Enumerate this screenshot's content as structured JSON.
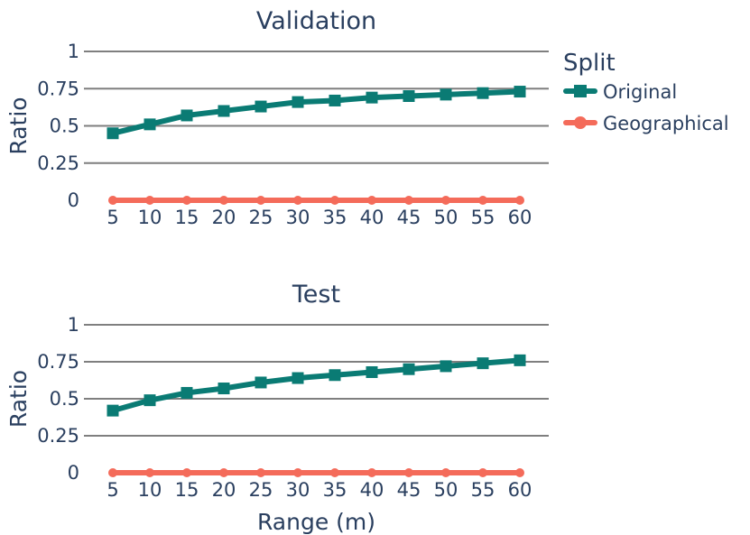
{
  "chart_data": [
    {
      "type": "line",
      "title": "Validation",
      "xlabel": "",
      "ylabel": "Ratio",
      "x": [
        5,
        10,
        15,
        20,
        25,
        30,
        35,
        40,
        45,
        50,
        55,
        60
      ],
      "ylim": [
        0,
        1
      ],
      "yticks": [
        "0",
        "0.25",
        "0.5",
        "0.75",
        "1"
      ],
      "grid": true,
      "series": [
        {
          "name": "Original",
          "color": "#0a7b74",
          "marker": "square",
          "values": [
            0.45,
            0.51,
            0.57,
            0.6,
            0.63,
            0.66,
            0.67,
            0.69,
            0.7,
            0.71,
            0.72,
            0.73
          ]
        },
        {
          "name": "Geographical",
          "color": "#f46b5a",
          "marker": "circle",
          "values": [
            0,
            0,
            0,
            0,
            0,
            0,
            0,
            0,
            0,
            0,
            0,
            0
          ]
        }
      ]
    },
    {
      "type": "line",
      "title": "Test",
      "xlabel": "Range (m)",
      "ylabel": "Ratio",
      "x": [
        5,
        10,
        15,
        20,
        25,
        30,
        35,
        40,
        45,
        50,
        55,
        60
      ],
      "ylim": [
        0,
        1
      ],
      "yticks": [
        "0",
        "0.25",
        "0.5",
        "0.75",
        "1"
      ],
      "grid": true,
      "series": [
        {
          "name": "Original",
          "color": "#0a7b74",
          "marker": "square",
          "values": [
            0.42,
            0.49,
            0.54,
            0.57,
            0.61,
            0.64,
            0.66,
            0.68,
            0.7,
            0.72,
            0.74,
            0.76
          ]
        },
        {
          "name": "Geographical",
          "color": "#f46b5a",
          "marker": "circle",
          "values": [
            0,
            0,
            0,
            0,
            0,
            0,
            0,
            0,
            0,
            0,
            0,
            0
          ]
        }
      ]
    }
  ],
  "legend": {
    "title": "Split",
    "placement": "right",
    "items": [
      {
        "label": "Original",
        "color": "#0a7b74",
        "marker": "square"
      },
      {
        "label": "Geographical",
        "color": "#f46b5a",
        "marker": "circle"
      }
    ]
  }
}
